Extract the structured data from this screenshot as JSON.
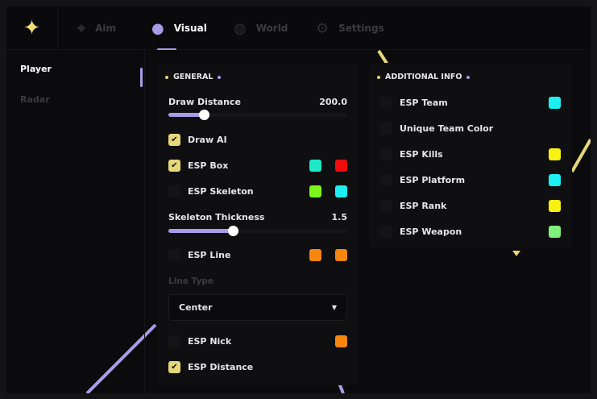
{
  "tabs": [
    {
      "label": "Aim",
      "icon": "crosshair-icon"
    },
    {
      "label": "Visual",
      "icon": "users-icon",
      "active": true
    },
    {
      "label": "World",
      "icon": "globe-icon"
    },
    {
      "label": "Settings",
      "icon": "gear-icon"
    }
  ],
  "sidebar": {
    "items": [
      {
        "label": "Player",
        "active": true
      },
      {
        "label": "Radar"
      }
    ]
  },
  "general": {
    "title": "GENERAL",
    "draw_distance": {
      "label": "Draw Distance",
      "value": "200.0",
      "fraction": 0.2
    },
    "draw_ai": {
      "label": "Draw AI",
      "checked": true
    },
    "esp_box": {
      "label": "ESP Box",
      "checked": true,
      "colors": [
        "#1de9c8",
        "#f00c0c"
      ]
    },
    "esp_skeleton": {
      "label": "ESP Skeleton",
      "checked": false,
      "colors": [
        "#7cf61a",
        "#1ceff2"
      ]
    },
    "skeleton_thickness": {
      "label": "Skeleton Thickness",
      "value": "1.5",
      "fraction": 0.36
    },
    "esp_line": {
      "label": "ESP Line",
      "checked": false,
      "colors": [
        "#f7860f",
        "#f7860f"
      ]
    },
    "line_type": {
      "label": "Line Type",
      "value": "Center"
    },
    "esp_nick": {
      "label": "ESP Nick",
      "checked": false,
      "colors": [
        "#f7860f"
      ]
    },
    "esp_distance": {
      "label": "ESP Distance",
      "checked": true
    }
  },
  "additional": {
    "title": "ADDITIONAL INFO",
    "items": [
      {
        "label": "ESP Team",
        "checked": false,
        "color": "#1ceff2"
      },
      {
        "label": "Unique Team Color",
        "checked": false
      },
      {
        "label": "ESP Kills",
        "checked": false,
        "color": "#f7f20f"
      },
      {
        "label": "ESP Platform",
        "checked": false,
        "color": "#1ceff2"
      },
      {
        "label": "ESP Rank",
        "checked": false,
        "color": "#f7f20f"
      },
      {
        "label": "ESP Weapon",
        "checked": false,
        "color": "#7ef07c"
      }
    ]
  },
  "colors": {
    "accent": "#a99be8",
    "yellow": "#e5d77a"
  }
}
